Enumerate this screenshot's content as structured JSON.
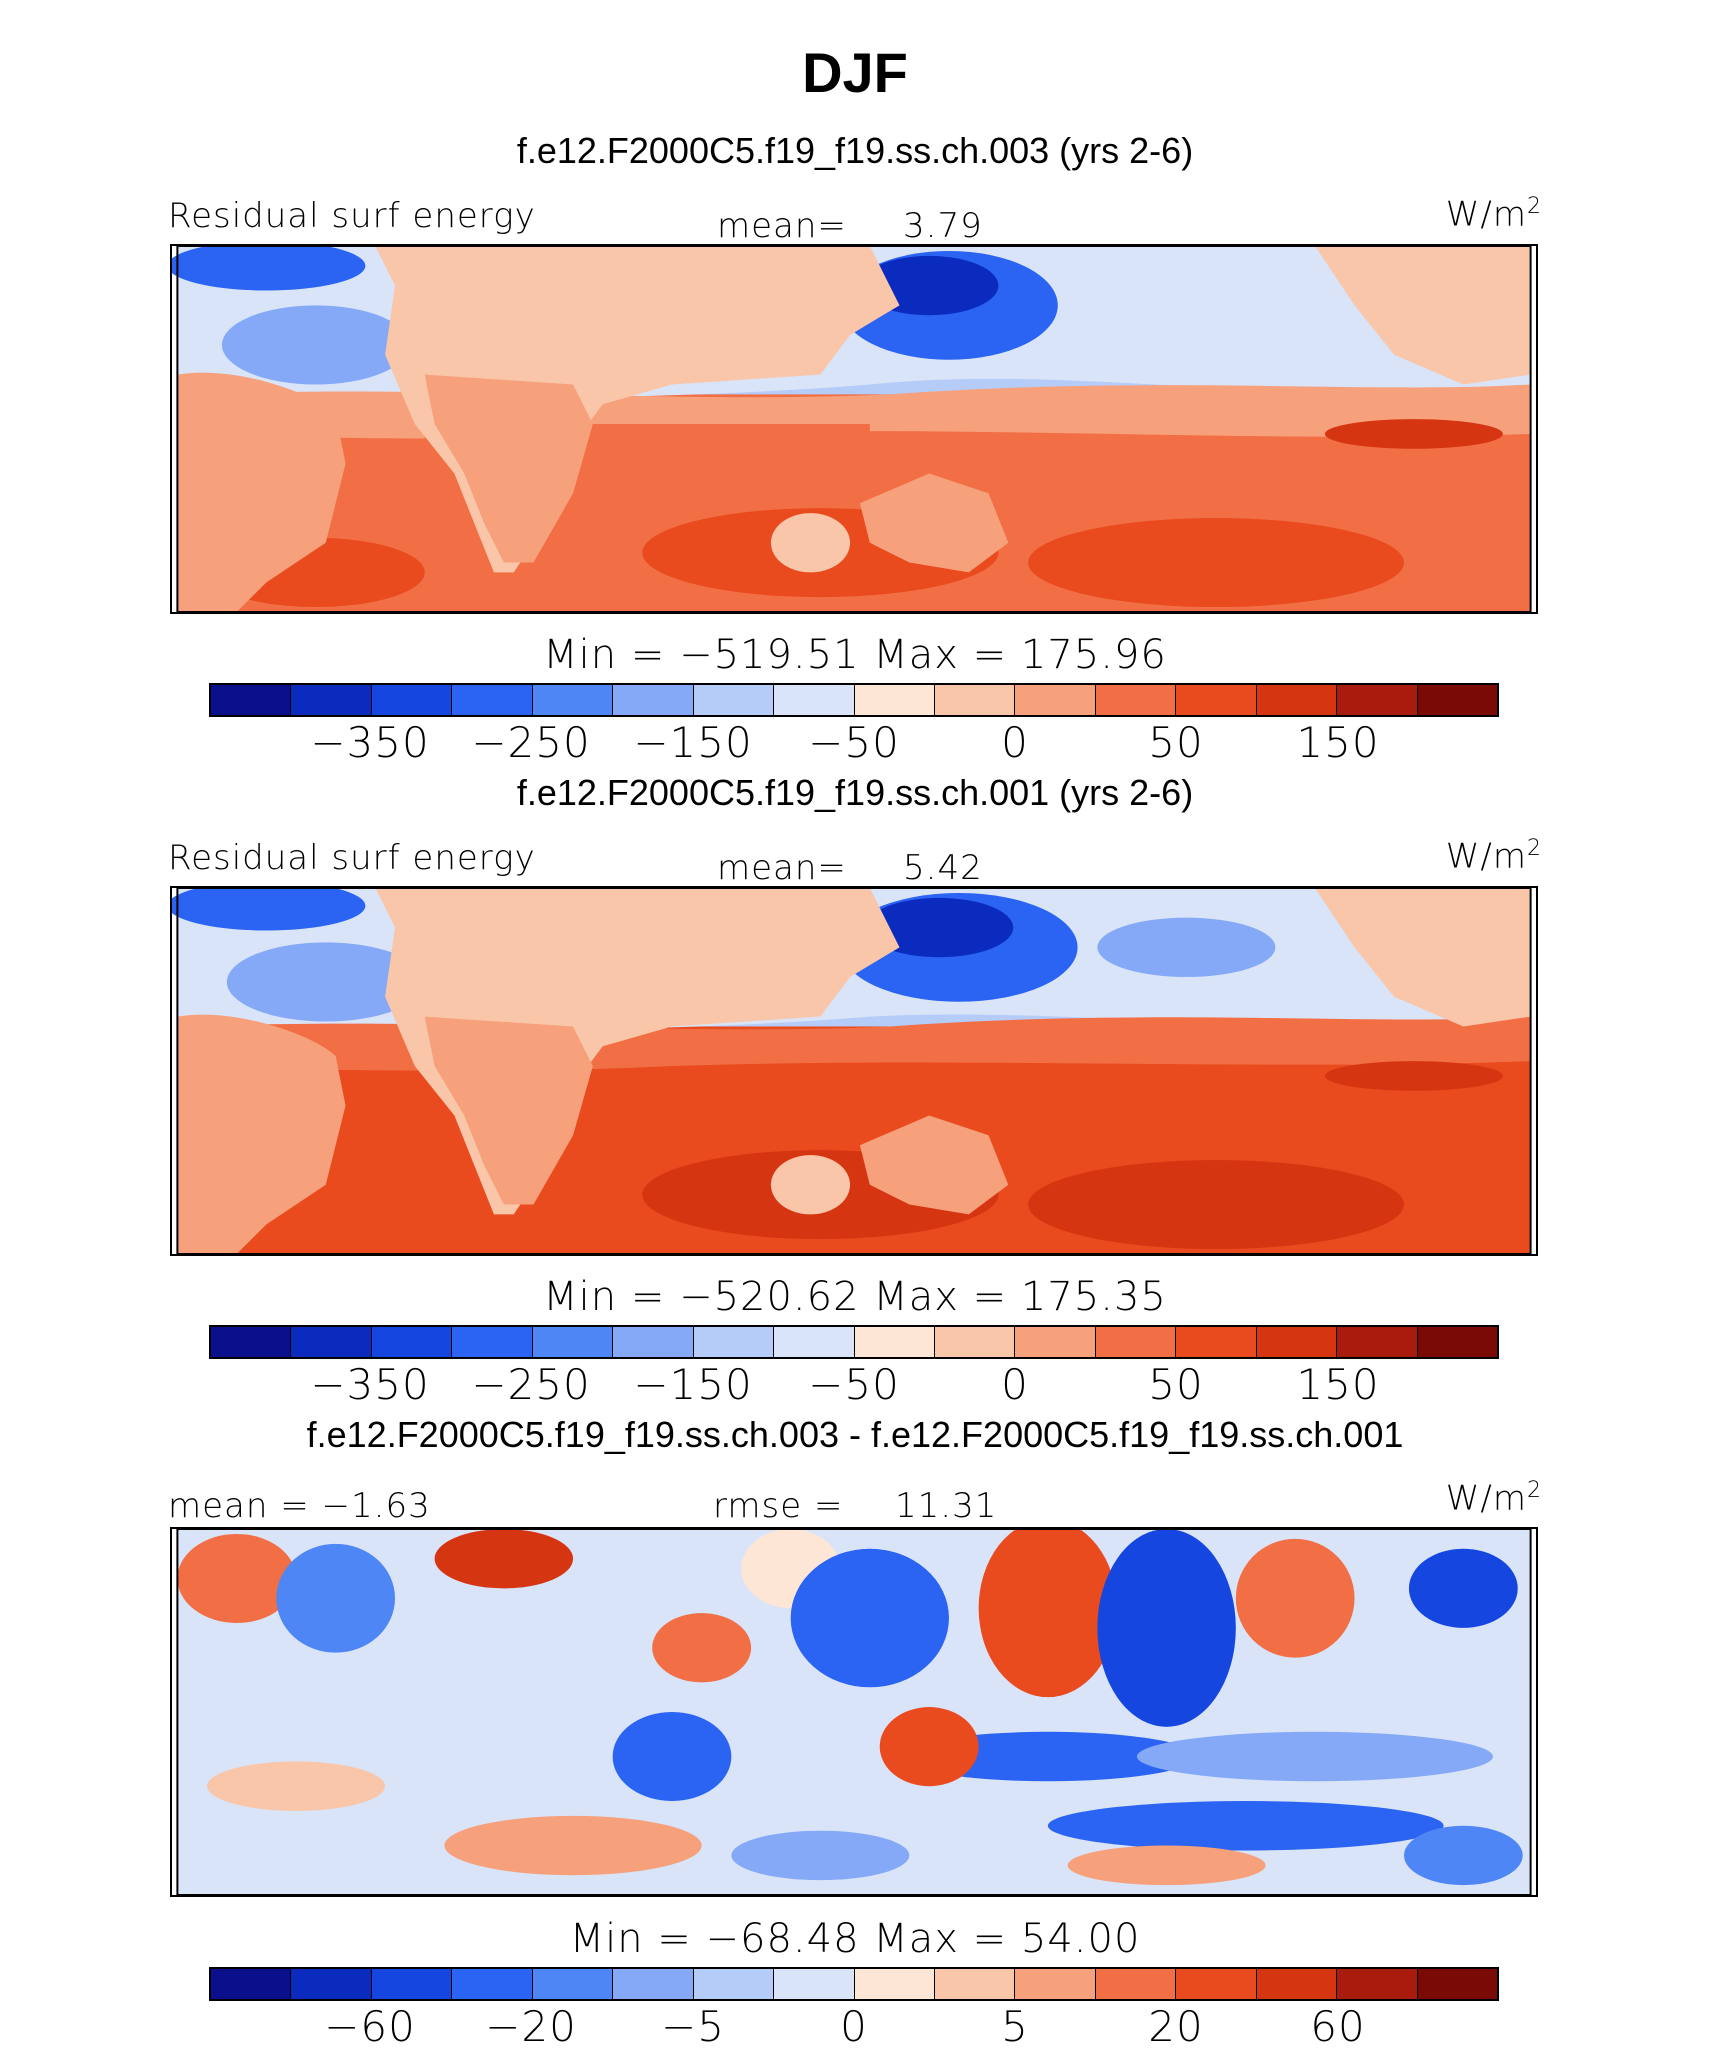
{
  "figure": {
    "title": "DJF",
    "variable": "Residual surf energy",
    "units": "W/m",
    "units_exp": "2"
  },
  "panels": [
    {
      "run_title": "f.e12.F2000C5.f19_f19.ss.ch.003 (yrs 2-6)",
      "left_label": "Residual surf energy",
      "stat_label": "mean=",
      "stat_value": "3.79",
      "minmax": "Min = −519.51 Max = 175.96"
    },
    {
      "run_title": "f.e12.F2000C5.f19_f19.ss.ch.001 (yrs 2-6)",
      "left_label": "Residual surf energy",
      "stat_label": "mean=",
      "stat_value": "5.42",
      "minmax": "Min = −520.62 Max = 175.35"
    },
    {
      "run_title": "f.e12.F2000C5.f19_f19.ss.ch.003 - f.e12.F2000C5.f19_f19.ss.ch.001",
      "left_label": "mean = −1.63",
      "stat_label": "rmse =",
      "stat_value": "11.31",
      "minmax": "Min = −68.48 Max = 54.00"
    }
  ],
  "chart_data": [
    {
      "type": "heatmap",
      "title": "f.e12.F2000C5.f19_f19.ss.ch.003 (yrs 2-6)",
      "variable": "Residual surf energy",
      "units": "W/m^2",
      "mean": 3.79,
      "min": -519.51,
      "max": 175.96,
      "colorbar_ticks": [
        "−350",
        "−250",
        "−150",
        "−50",
        "0",
        "50",
        "150"
      ]
    },
    {
      "type": "heatmap",
      "title": "f.e12.F2000C5.f19_f19.ss.ch.001 (yrs 2-6)",
      "variable": "Residual surf energy",
      "units": "W/m^2",
      "mean": 5.42,
      "min": -520.62,
      "max": 175.35,
      "colorbar_ticks": [
        "−350",
        "−250",
        "−150",
        "−50",
        "0",
        "50",
        "150"
      ]
    },
    {
      "type": "heatmap",
      "title": "f.e12.F2000C5.f19_f19.ss.ch.003 - f.e12.F2000C5.f19_f19.ss.ch.001",
      "units": "W/m^2",
      "mean": -1.63,
      "rmse": 11.31,
      "min": -68.48,
      "max": 54.0,
      "colorbar_ticks": [
        "−60",
        "−20",
        "−5",
        "0",
        "5",
        "20",
        "60"
      ]
    }
  ],
  "colors": {
    "palette": [
      "#0a0f8c",
      "#0b2bbf",
      "#1546e0",
      "#2b63f2",
      "#4f86f5",
      "#86a9f7",
      "#b5cbf8",
      "#d9e4f9",
      "#fde6d6",
      "#f9c6a9",
      "#f6a17c",
      "#f26f45",
      "#e94a1e",
      "#d63512",
      "#a91c0d",
      "#7a0a06"
    ],
    "land_top": "#f9c6a9",
    "land_africa": "#f6a17c"
  }
}
